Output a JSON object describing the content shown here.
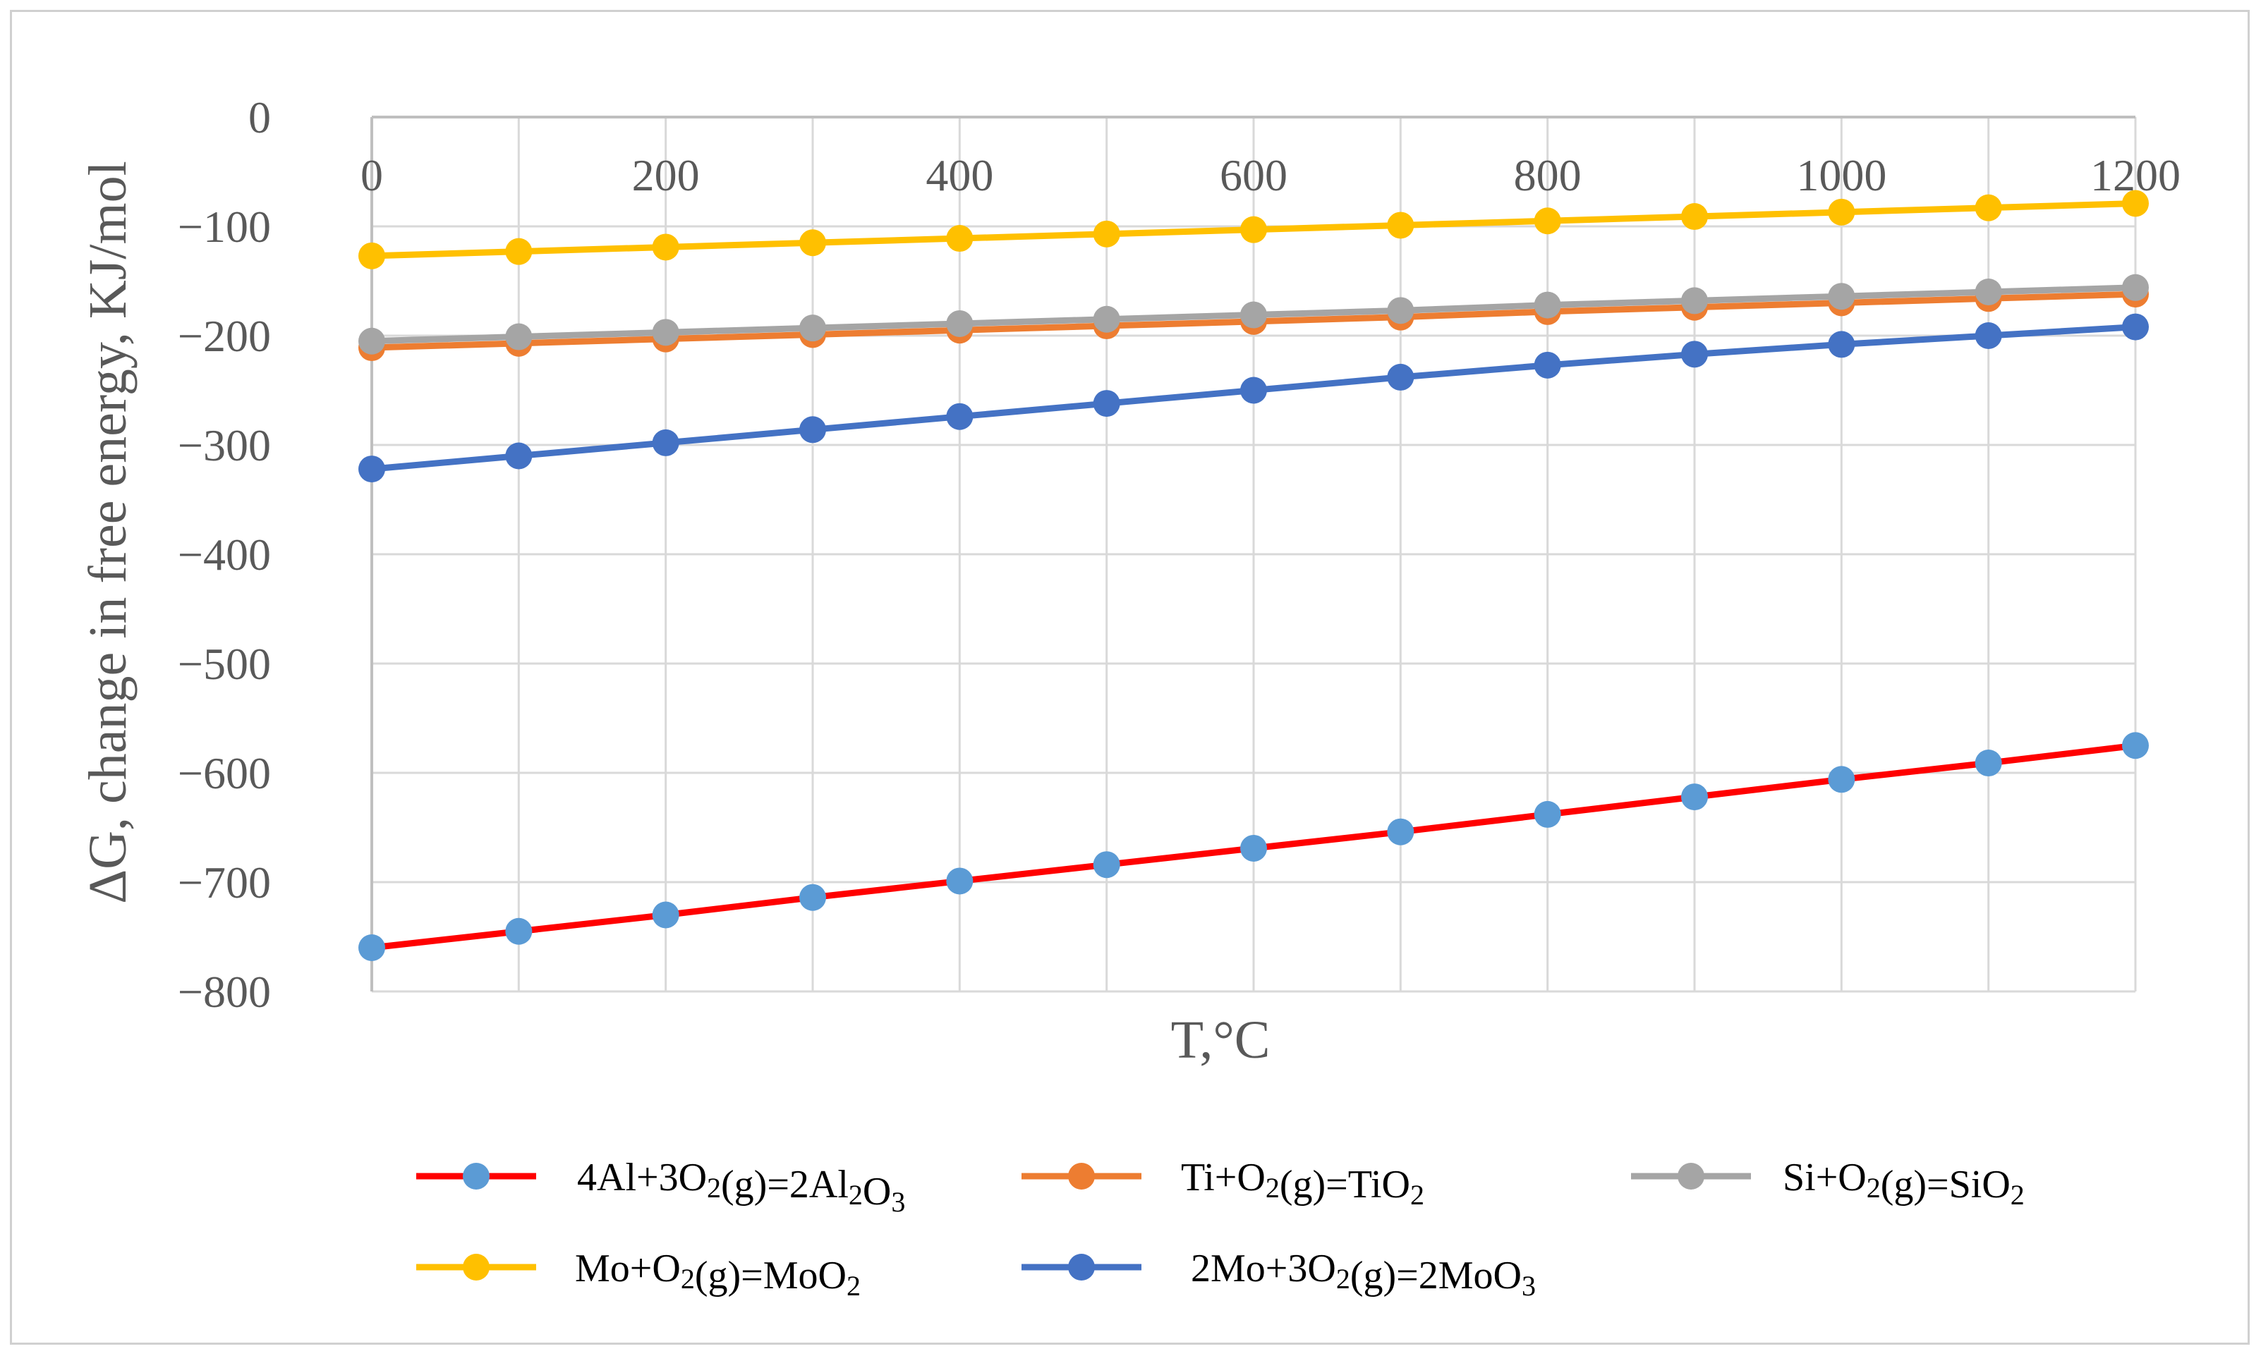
{
  "chart_data": {
    "type": "line",
    "title": "",
    "xlabel": "T,°C",
    "ylabel": "ΔG, change in free energy, KJ/mol",
    "x": [
      0,
      100,
      200,
      300,
      400,
      500,
      600,
      700,
      800,
      900,
      1000,
      1100,
      1200
    ],
    "xlim": [
      0,
      1200
    ],
    "ylim": [
      -800,
      0
    ],
    "x_ticks": [
      "0",
      "200",
      "400",
      "600",
      "800",
      "1000",
      "1200"
    ],
    "y_ticks": [
      "0",
      "−100",
      "−200",
      "−300",
      "−400",
      "−500",
      "−600",
      "−700",
      "−800"
    ],
    "grid": true,
    "legend_position": "bottom",
    "series": [
      {
        "name": "4Al+3O2(g)=2Al2O3",
        "label_parts": [
          [
            "4Al+3O",
            ""
          ],
          [
            "2",
            "sub"
          ],
          [
            "(g)=2Al",
            ""
          ],
          [
            "2",
            "sub"
          ],
          [
            "O",
            ""
          ],
          [
            "3",
            "sub"
          ]
        ],
        "line_color": "#ff0000",
        "marker_color": "#5b9bd5",
        "values": [
          -760,
          -745,
          -730,
          -714,
          -699,
          -684,
          -669,
          -654,
          -638,
          -622,
          -606,
          -591,
          -575
        ]
      },
      {
        "name": "Ti+O2(g)=TiO2",
        "label_parts": [
          [
            "Ti+O",
            ""
          ],
          [
            "2",
            "sub"
          ],
          [
            "(g)=TiO",
            ""
          ],
          [
            "2",
            "sub"
          ]
        ],
        "line_color": "#ed7d31",
        "marker_color": "#ed7d31",
        "values": [
          -211,
          -207,
          -203,
          -199,
          -195,
          -191,
          -187,
          -183,
          -178,
          -174,
          -170,
          -166,
          -162
        ]
      },
      {
        "name": "Si+O2(g)=SiO2",
        "label_parts": [
          [
            "Si+O",
            ""
          ],
          [
            "2",
            "sub"
          ],
          [
            "(g)=SiO",
            ""
          ],
          [
            "2",
            "sub"
          ]
        ],
        "line_color": "#a5a5a5",
        "marker_color": "#a5a5a5",
        "values": [
          -205,
          -201,
          -197,
          -193,
          -189,
          -185,
          -181,
          -177,
          -172,
          -168,
          -164,
          -160,
          -156
        ]
      },
      {
        "name": "Mo+O2(g)=MoO2",
        "label_parts": [
          [
            "Mo+O",
            ""
          ],
          [
            "2",
            "sub"
          ],
          [
            "(g)=MoO",
            ""
          ],
          [
            "2",
            "sub"
          ]
        ],
        "line_color": "#ffc000",
        "marker_color": "#ffc000",
        "values": [
          -127,
          -123,
          -119,
          -115,
          -111,
          -107,
          -103,
          -99,
          -95,
          -91,
          -87,
          -83,
          -79
        ]
      },
      {
        "name": "2Mo+3O2(g)=2MoO3",
        "label_parts": [
          [
            "2Mo+3O",
            ""
          ],
          [
            "2",
            "sub"
          ],
          [
            "(g)=2MoO",
            ""
          ],
          [
            "3",
            "sub"
          ]
        ],
        "line_color": "#4472c4",
        "marker_color": "#4472c4",
        "values": [
          -322,
          -310,
          -298,
          -286,
          -274,
          -262,
          -250,
          -238,
          -227,
          -217,
          -208,
          -200,
          -192
        ]
      }
    ]
  }
}
